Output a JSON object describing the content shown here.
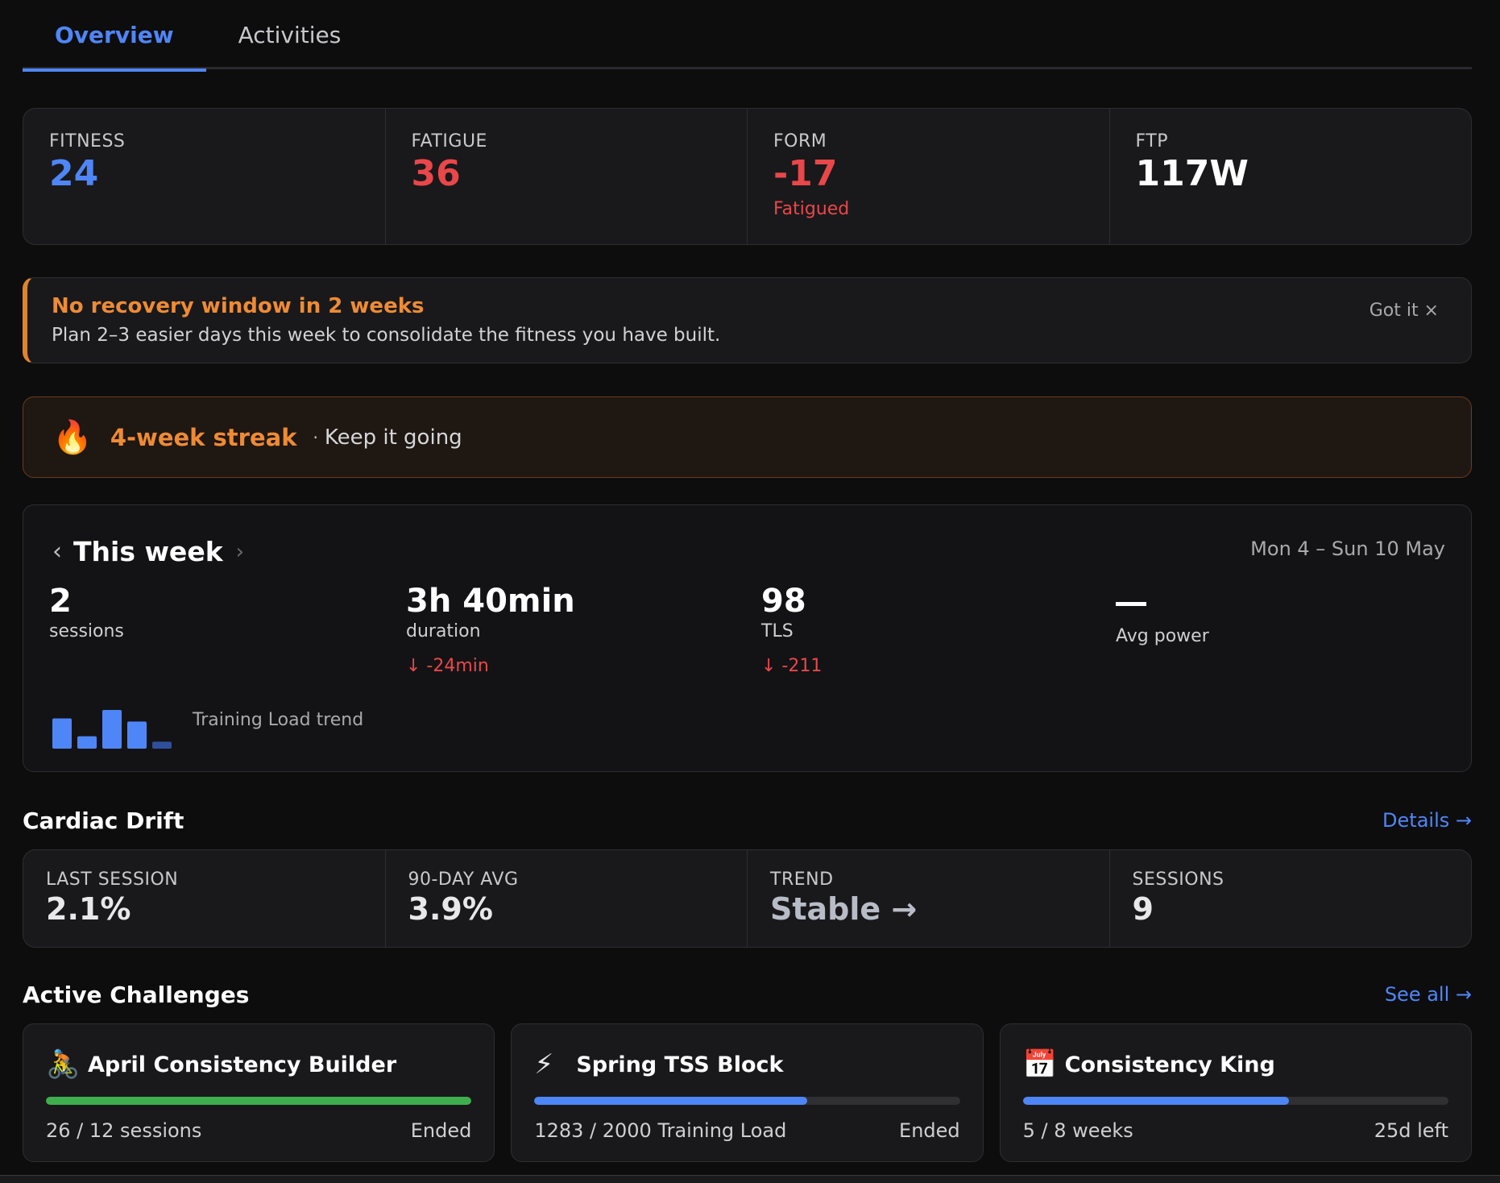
{
  "tabs": [
    {
      "label": "Overview",
      "active": true
    },
    {
      "label": "Activities",
      "active": false
    }
  ],
  "metrics": {
    "fitness": {
      "label": "FITNESS",
      "value": "24",
      "color": "#4f86f7"
    },
    "fatigue": {
      "label": "FATIGUE",
      "value": "36",
      "color": "#e9474a"
    },
    "form": {
      "label": "FORM",
      "value": "-17",
      "sub": "Fatigued",
      "color": "#e9474a"
    },
    "ftp": {
      "label": "FTP",
      "value": "117W",
      "color": "#ffffff"
    }
  },
  "alert": {
    "title": "No recovery window in 2 weeks",
    "text": "Plan 2–3 easier days this week to consolidate the fitness you have built.",
    "dismiss_label": "Got it ×",
    "accent": "#e0832f"
  },
  "streak": {
    "icon": "🔥",
    "title": "4-week streak",
    "separator": "·",
    "subtitle": "Keep it going"
  },
  "week": {
    "prev_icon": "‹",
    "next_icon": "›",
    "title": "This week",
    "range": "Mon 4 – Sun 10 May",
    "stats": {
      "sessions": {
        "value": "2",
        "label": "sessions"
      },
      "duration": {
        "value": "3h 40min",
        "label": "duration",
        "delta": "↓ -24min"
      },
      "tls": {
        "value": "98",
        "label": "TLS",
        "delta": "↓ -211"
      },
      "power": {
        "value": "—",
        "label": "Avg power"
      }
    },
    "trend": {
      "label": "Training Load trend",
      "values": [
        0.78,
        0.32,
        1.0,
        0.7,
        0.18
      ]
    }
  },
  "cardiac_drift": {
    "title": "Cardiac Drift",
    "link": "Details →",
    "last_session": {
      "label": "LAST SESSION",
      "value": "2.1%"
    },
    "avg_90": {
      "label": "90-DAY AVG",
      "value": "3.9%"
    },
    "trend": {
      "label": "TREND",
      "value": "Stable →",
      "color": "#b8bcc6"
    },
    "sessions": {
      "label": "SESSIONS",
      "value": "9"
    }
  },
  "challenges": {
    "title": "Active Challenges",
    "link": "See all →",
    "items": [
      {
        "icon": "🚴",
        "title": "April Consistency Builder",
        "progress_text": "26 / 12 sessions",
        "status": "Ended",
        "progress": 1.0,
        "color": "#3fae4f"
      },
      {
        "icon": "⚡",
        "title": "Spring TSS Block",
        "progress_text": "1283 / 2000 Training Load",
        "status": "Ended",
        "progress": 0.6415,
        "color": "#4f86f7"
      },
      {
        "icon": "📅",
        "title": "Consistency King",
        "progress_text": "5 / 8 weeks",
        "status": "25d left",
        "progress": 0.625,
        "color": "#4f86f7"
      }
    ]
  }
}
